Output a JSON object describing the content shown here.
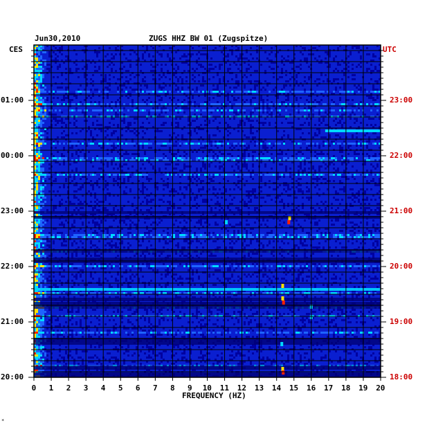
{
  "header": {
    "date": "Jun30,2010",
    "station": "ZUGS HHZ BW 01 (Zugspitze)"
  },
  "left_axis_label": "CES",
  "right_axis_label": "UTC",
  "footnote": "*",
  "chart_data": {
    "type": "heatmap",
    "title": "ZUGS HHZ BW 01 (Zugsspitze)",
    "date": "Jun30,2010",
    "xlabel": "FREQUENCY (HZ)",
    "xlim": [
      0,
      20
    ],
    "x_ticks": [
      "0",
      "1",
      "2",
      "3",
      "4",
      "5",
      "6",
      "7",
      "8",
      "9",
      "10",
      "11",
      "12",
      "13",
      "14",
      "15",
      "16",
      "17",
      "18",
      "19",
      "20"
    ],
    "left_time_zone": "CES",
    "left_ticks": [
      "01:00",
      "00:00",
      "23:00",
      "22:00",
      "21:00",
      "20:00"
    ],
    "right_time_zone": "UTC",
    "right_ticks": [
      "23:00",
      "22:00",
      "21:00",
      "20:00",
      "19:00",
      "18:00"
    ],
    "colors": {
      "background": "#0a1fd0",
      "low": "#0000a0",
      "mid": "#1e64ff",
      "high": "#00d8ff",
      "peak": "#ffe000",
      "max": "#ff2000",
      "utc_text": "#cc0000",
      "grid": "#000000"
    },
    "notable_features": [
      {
        "frequency_hz": [
          0.0,
          0.6
        ],
        "description": "persistent strong low-frequency energy"
      },
      {
        "frequency_hz": [
          16.8,
          20.0
        ],
        "time_utc": "22:30",
        "description": "horizontal high-energy band"
      },
      {
        "frequency_hz": [
          14.2,
          14.8
        ],
        "time_utc": "18:05-21:00",
        "description": "yellow/red spots"
      },
      {
        "frequency_hz": [
          0.0,
          20.0
        ],
        "time_utc": "19:40",
        "description": "broadband cyan band"
      }
    ]
  }
}
